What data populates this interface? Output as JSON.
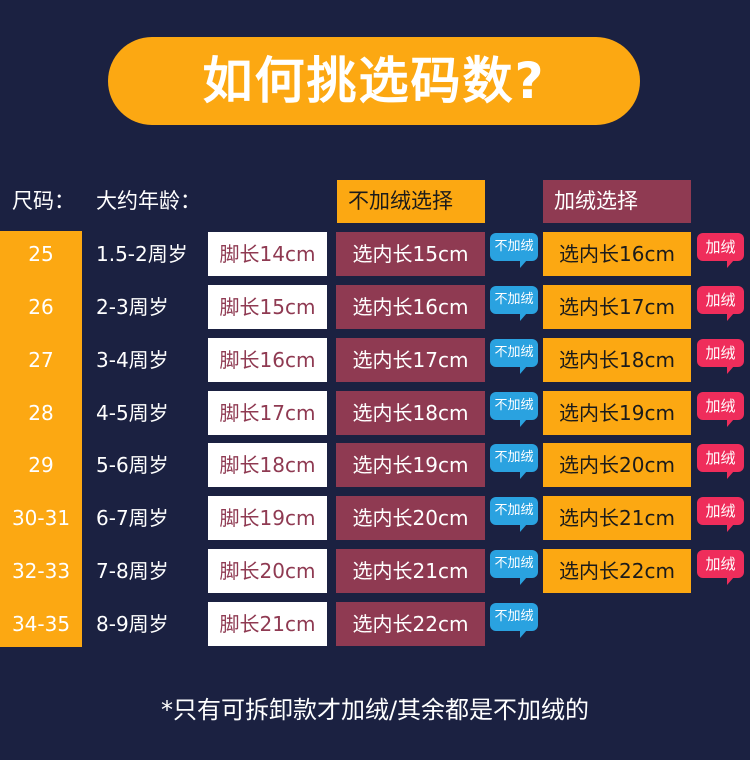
{
  "title": "如何挑选码数?",
  "header": {
    "size_label": "尺码：",
    "age_label": "大约年龄：",
    "no_fleece_label": "不加绒选择",
    "fleece_label": "加绒选择"
  },
  "bubbles": {
    "no_fleece": "不加绒",
    "fleece": "加绒"
  },
  "rows": [
    {
      "size": "25",
      "age": "1.5-2周岁",
      "foot": "脚长14cm",
      "inner_no_fleece": "选内长15cm",
      "inner_fleece": "选内长16cm"
    },
    {
      "size": "26",
      "age": "2-3周岁",
      "foot": "脚长15cm",
      "inner_no_fleece": "选内长16cm",
      "inner_fleece": "选内长17cm"
    },
    {
      "size": "27",
      "age": "3-4周岁",
      "foot": "脚长16cm",
      "inner_no_fleece": "选内长17cm",
      "inner_fleece": "选内长18cm"
    },
    {
      "size": "28",
      "age": "4-5周岁",
      "foot": "脚长17cm",
      "inner_no_fleece": "选内长18cm",
      "inner_fleece": "选内长19cm"
    },
    {
      "size": "29",
      "age": "5-6周岁",
      "foot": "脚长18cm",
      "inner_no_fleece": "选内长19cm",
      "inner_fleece": "选内长20cm"
    },
    {
      "size": "30-31",
      "age": "6-7周岁",
      "foot": "脚长19cm",
      "inner_no_fleece": "选内长20cm",
      "inner_fleece": "选内长21cm"
    },
    {
      "size": "32-33",
      "age": "7-8周岁",
      "foot": "脚长20cm",
      "inner_no_fleece": "选内长21cm",
      "inner_fleece": "选内长22cm"
    },
    {
      "size": "34-35",
      "age": "8-9周岁",
      "foot": "脚长21cm",
      "inner_no_fleece": "选内长22cm"
    }
  ],
  "footnote": "*只有可拆卸款才加绒/其余都是不加绒的",
  "colors": {
    "background": "#1b2141",
    "accent_orange": "#fca812",
    "accent_wine": "#8f3a52",
    "bubble_blue": "#2aa2e0",
    "bubble_red": "#ef2d5b"
  }
}
